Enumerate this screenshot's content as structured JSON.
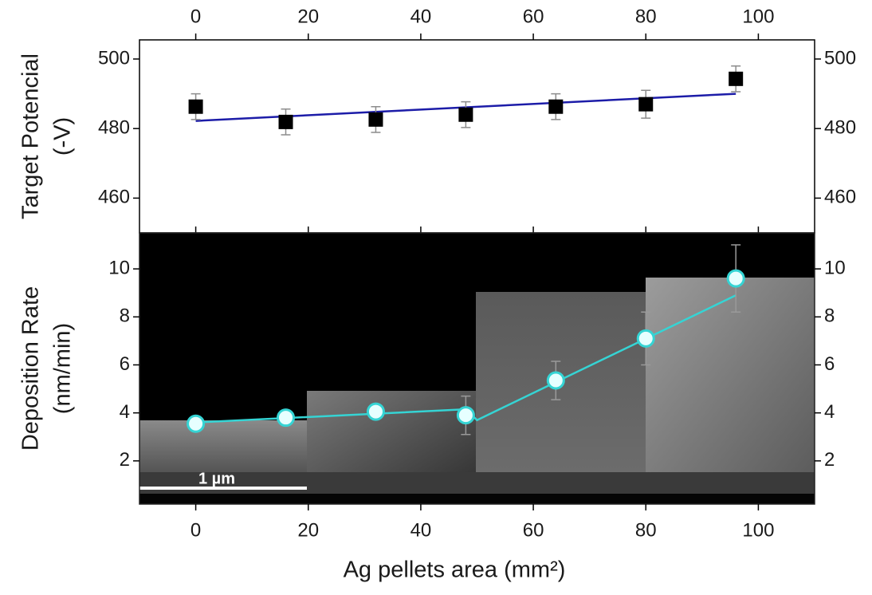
{
  "chart_data": [
    {
      "type": "scatter",
      "ylabel": [
        "Target Potencial",
        "(-V)"
      ],
      "x": [
        0,
        16,
        32,
        48,
        64,
        80,
        96
      ],
      "values": [
        486.3,
        481.9,
        482.6,
        484,
        486.3,
        487,
        494.3
      ],
      "errors": [
        3.7,
        3.7,
        3.7,
        3.7,
        3.7,
        4,
        3.7
      ],
      "color": "#000000",
      "error_color": "#8c8c8c",
      "fit": {
        "x": [
          0,
          96
        ],
        "y": [
          482.2,
          490
        ],
        "color": "#1c1ca8"
      },
      "xlim": [
        -10,
        110
      ],
      "xticks": [
        0,
        20,
        40,
        60,
        80,
        100
      ],
      "ylim": [
        450,
        505.5
      ],
      "yticks": [
        460,
        480,
        500
      ]
    },
    {
      "type": "scatter",
      "ylabel": [
        "Deposition Rate",
        "(nm/min)"
      ],
      "xlabel": "Ag pellets area (mm²)",
      "annotation": "1 µm",
      "x": [
        0,
        16,
        32,
        48,
        64,
        80,
        96
      ],
      "values": [
        3.55,
        3.8,
        4.05,
        3.9,
        5.35,
        7.1,
        9.6
      ],
      "errors": [
        0.1,
        0.1,
        0.1,
        0.8,
        0.8,
        1.1,
        1.4
      ],
      "color": "#35d4d4",
      "error_color": "#9a9a9a",
      "fit": {
        "x": [
          0,
          48,
          50,
          96
        ],
        "y": [
          3.6,
          4.15,
          3.7,
          8.9
        ],
        "color": "#35d4d4"
      },
      "xlim": [
        -10,
        110
      ],
      "xticks": [
        0,
        20,
        40,
        60,
        80,
        100
      ],
      "ylim": [
        0.2,
        11.5
      ],
      "yticks": [
        2,
        4,
        6,
        8,
        10
      ]
    }
  ]
}
